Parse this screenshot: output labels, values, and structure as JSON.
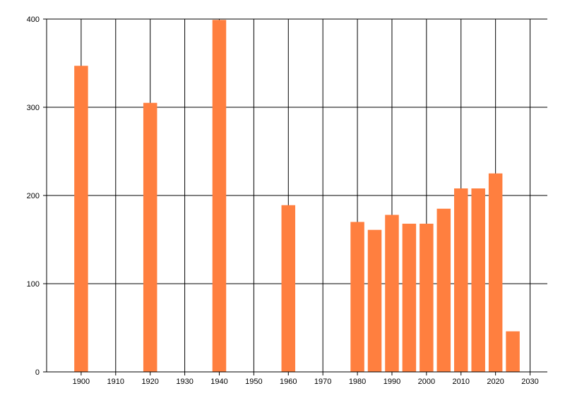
{
  "chart_data": {
    "type": "bar",
    "title": "",
    "xlabel": "",
    "ylabel": "",
    "x": [
      1900,
      1920,
      1940,
      1960,
      1980,
      1985,
      1990,
      1995,
      2000,
      2005,
      2010,
      2015,
      2020,
      2025
    ],
    "values": [
      347,
      305,
      399,
      189,
      170,
      161,
      178,
      168,
      168,
      185,
      208,
      208,
      225,
      46
    ],
    "xlim": [
      1890,
      2035
    ],
    "ylim": [
      0,
      400
    ],
    "x_ticks": [
      "1900",
      "1910",
      "1920",
      "1930",
      "1940",
      "1950",
      "1960",
      "1970",
      "1980",
      "1990",
      "2000",
      "2010",
      "2020",
      "2030"
    ],
    "y_ticks": [
      "0",
      "100",
      "200",
      "300",
      "400"
    ],
    "grid": true,
    "legend": "none"
  },
  "colors": {
    "bar": "#ff7f3f",
    "grid": "#000000",
    "axis": "#000000"
  }
}
